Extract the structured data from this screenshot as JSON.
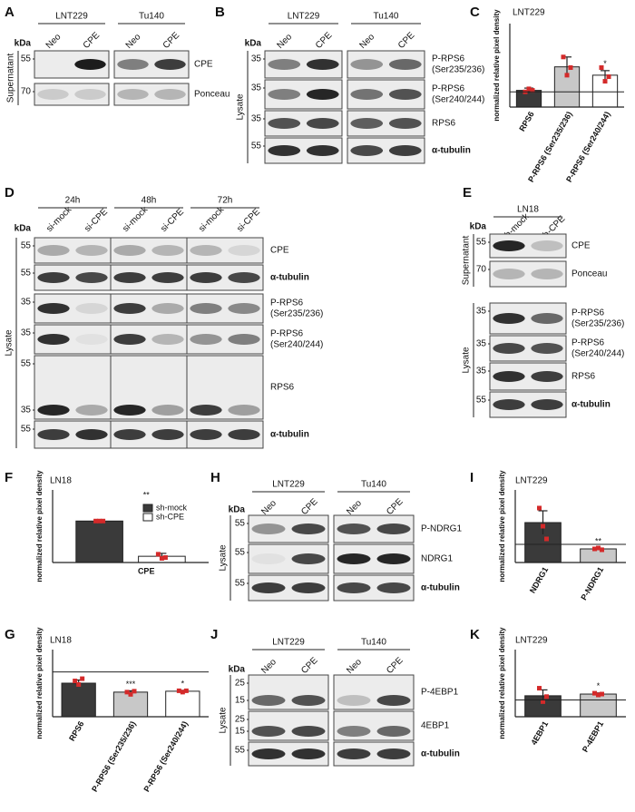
{
  "panels": {
    "A": {
      "letter": "A",
      "kda": "kDa",
      "groups": [
        "LNT229",
        "Tu140"
      ],
      "lanes": [
        "Neo",
        "CPE",
        "Neo",
        "CPE"
      ],
      "sections": [
        {
          "side": "Supernatant",
          "rows": [
            {
              "markers": [
                55
              ],
              "label": [
                "CPE"
              ]
            },
            {
              "markers": [
                70
              ],
              "label": [
                "Ponceau"
              ]
            }
          ]
        }
      ]
    },
    "B": {
      "letter": "B",
      "kda": "kDa",
      "groups": [
        "LNT229",
        "Tu140"
      ],
      "lanes": [
        "Neo",
        "CPE",
        "Neo",
        "CPE"
      ],
      "sections": [
        {
          "side": "Lysate",
          "rows": [
            {
              "markers": [
                35
              ],
              "label": [
                "P-RPS6",
                "(Ser235/236)"
              ]
            },
            {
              "markers": [
                35
              ],
              "label": [
                "P-RPS6",
                "(Ser240/244)"
              ]
            },
            {
              "markers": [
                35
              ],
              "label": [
                "RPS6"
              ]
            },
            {
              "markers": [
                55
              ],
              "label": [
                "α-tubulin"
              ]
            }
          ]
        }
      ]
    },
    "D": {
      "letter": "D",
      "kda": "kDa",
      "groups": [
        "24h",
        "48h",
        "72h"
      ],
      "lanes": [
        "si-mock",
        "si-CPE",
        "si-mock",
        "si-CPE",
        "si-mock",
        "si-CPE"
      ],
      "sections": [
        {
          "side": "Lysate",
          "rows": [
            {
              "markers": [
                55
              ],
              "label": [
                "CPE"
              ]
            },
            {
              "markers": [
                55
              ],
              "label": [
                "α-tubulin"
              ]
            },
            {
              "markers": [
                35
              ],
              "label": [
                "P-RPS6",
                "(Ser235/236)"
              ]
            },
            {
              "markers": [
                35
              ],
              "label": [
                "P-RPS6",
                "(Ser240/244)"
              ]
            },
            {
              "markers": [
                55,
                35
              ],
              "label": [
                "RPS6"
              ]
            },
            {
              "markers": [
                55
              ],
              "label": [
                "α-tubulin"
              ]
            }
          ]
        }
      ]
    },
    "E": {
      "letter": "E",
      "kda": "kDa",
      "groups": [
        "LN18"
      ],
      "lanes": [
        "sh-mock",
        "sh-CPE"
      ],
      "sections": [
        {
          "side": "Supernatant",
          "rows": [
            {
              "markers": [
                55
              ],
              "label": [
                "CPE"
              ]
            },
            {
              "markers": [
                70
              ],
              "label": [
                "Ponceau"
              ]
            }
          ]
        },
        {
          "side": "Lysate",
          "rows": [
            {
              "markers": [
                35
              ],
              "label": [
                "P-RPS6",
                "(Ser235/236)"
              ]
            },
            {
              "markers": [
                35
              ],
              "label": [
                "P-RPS6",
                "(Ser240/244)"
              ]
            },
            {
              "markers": [
                35
              ],
              "label": [
                "RPS6"
              ]
            },
            {
              "markers": [
                55
              ],
              "label": [
                "α-tubulin"
              ]
            }
          ]
        }
      ]
    },
    "H": {
      "letter": "H",
      "kda": "kDa",
      "groups": [
        "LNT229",
        "Tu140"
      ],
      "lanes": [
        "Neo",
        "CPE",
        "Neo",
        "CPE"
      ],
      "sections": [
        {
          "side": "Lysate",
          "rows": [
            {
              "markers": [
                55
              ],
              "label": [
                "P-NDRG1"
              ]
            },
            {
              "markers": [
                55
              ],
              "label": [
                "NDRG1"
              ]
            },
            {
              "markers": [
                55
              ],
              "label": [
                "α-tubulin"
              ]
            }
          ]
        }
      ]
    },
    "J": {
      "letter": "J",
      "kda": "kDa",
      "groups": [
        "LNT229",
        "Tu140"
      ],
      "lanes": [
        "Neo",
        "CPE",
        "Neo",
        "CPE"
      ],
      "sections": [
        {
          "side": "Lysate",
          "rows": [
            {
              "markers": [
                25,
                15
              ],
              "label": [
                "P-4EBP1"
              ]
            },
            {
              "markers": [
                25,
                15
              ],
              "label": [
                "4EBP1"
              ]
            },
            {
              "markers": [
                55
              ],
              "label": [
                "α-tubulin"
              ]
            }
          ]
        }
      ]
    }
  },
  "chart_data": [
    {
      "type": "bar",
      "letter": "C",
      "title": "LNT229",
      "ylabel": "normalized relative pixel density",
      "ylim": [
        0,
        5.5
      ],
      "ref_line": 1,
      "categories": [
        "RPS6",
        "P-RPS6 (Ser235/236)",
        "P-RPS6 (Ser240/244)"
      ],
      "values": [
        1.1,
        2.65,
        2.1
      ],
      "errors": [
        0.15,
        0.65,
        0.3
      ],
      "points": [
        [
          1.0,
          1.2,
          1.1
        ],
        [
          3.3,
          2.1,
          2.6
        ],
        [
          2.6,
          1.7,
          2.0
        ]
      ],
      "colors": [
        "#3a3a3a",
        "#c8c8c8",
        "#ffffff"
      ],
      "annotations": [
        null,
        null,
        "*"
      ]
    },
    {
      "type": "bar",
      "letter": "F",
      "title": "LN18",
      "ylabel": "normalized relative pixel density",
      "ylim": [
        0,
        1.75
      ],
      "categories": [
        "CPE"
      ],
      "annotations": [
        "**"
      ],
      "series": [
        {
          "name": "sh-mock",
          "color": "#3a3a3a",
          "values": [
            1.0
          ],
          "errors": [
            0.02
          ],
          "points": [
            [
              1.0,
              1.0,
              1.0
            ]
          ]
        },
        {
          "name": "sh-CPE",
          "color": "#ffffff",
          "values": [
            0.15
          ],
          "errors": [
            0.07
          ],
          "points": [
            [
              0.2,
              0.1,
              0.12
            ]
          ]
        }
      ]
    },
    {
      "type": "bar",
      "letter": "G",
      "title": "LN18",
      "ylabel": "normalized relative pixel density",
      "ylim": [
        0,
        1.5
      ],
      "ref_line": 1,
      "categories": [
        "RPS6",
        "P-RPS6 (Ser235/236)",
        "P-RPS6 (Ser240/244)"
      ],
      "values": [
        0.75,
        0.55,
        0.57
      ],
      "errors": [
        0.07,
        0.03,
        0.02
      ],
      "points": [
        [
          0.8,
          0.72,
          0.85
        ],
        [
          0.55,
          0.5,
          0.57
        ],
        [
          0.58,
          0.55,
          0.58
        ]
      ],
      "colors": [
        "#3a3a3a",
        "#c8c8c8",
        "#ffffff"
      ],
      "annotations": [
        null,
        "***",
        "*"
      ]
    },
    {
      "type": "bar",
      "letter": "I",
      "title": "LNT229",
      "ylabel": "normalized relative pixel density",
      "ylim": [
        0,
        4
      ],
      "ref_line": 1,
      "categories": [
        "NDRG1",
        "P-NDRG1"
      ],
      "values": [
        2.2,
        0.75
      ],
      "errors": [
        0.65,
        0.05
      ],
      "points": [
        [
          3.0,
          2.0,
          1.3
        ],
        [
          0.75,
          0.8,
          0.7
        ]
      ],
      "colors": [
        "#3a3a3a",
        "#c8c8c8"
      ],
      "annotations": [
        null,
        "**"
      ]
    },
    {
      "type": "bar",
      "letter": "K",
      "title": "LNT229",
      "ylabel": "normalized relative pixel density",
      "ylim": [
        0,
        4
      ],
      "ref_line": 1,
      "categories": [
        "4EBP1",
        "P-4EBP1"
      ],
      "values": [
        1.25,
        1.35
      ],
      "errors": [
        0.35,
        0.07
      ],
      "points": [
        [
          1.7,
          0.9,
          1.2
        ],
        [
          1.4,
          1.3,
          1.35
        ]
      ],
      "colors": [
        "#3a3a3a",
        "#c8c8c8"
      ],
      "annotations": [
        null,
        "*"
      ]
    }
  ]
}
